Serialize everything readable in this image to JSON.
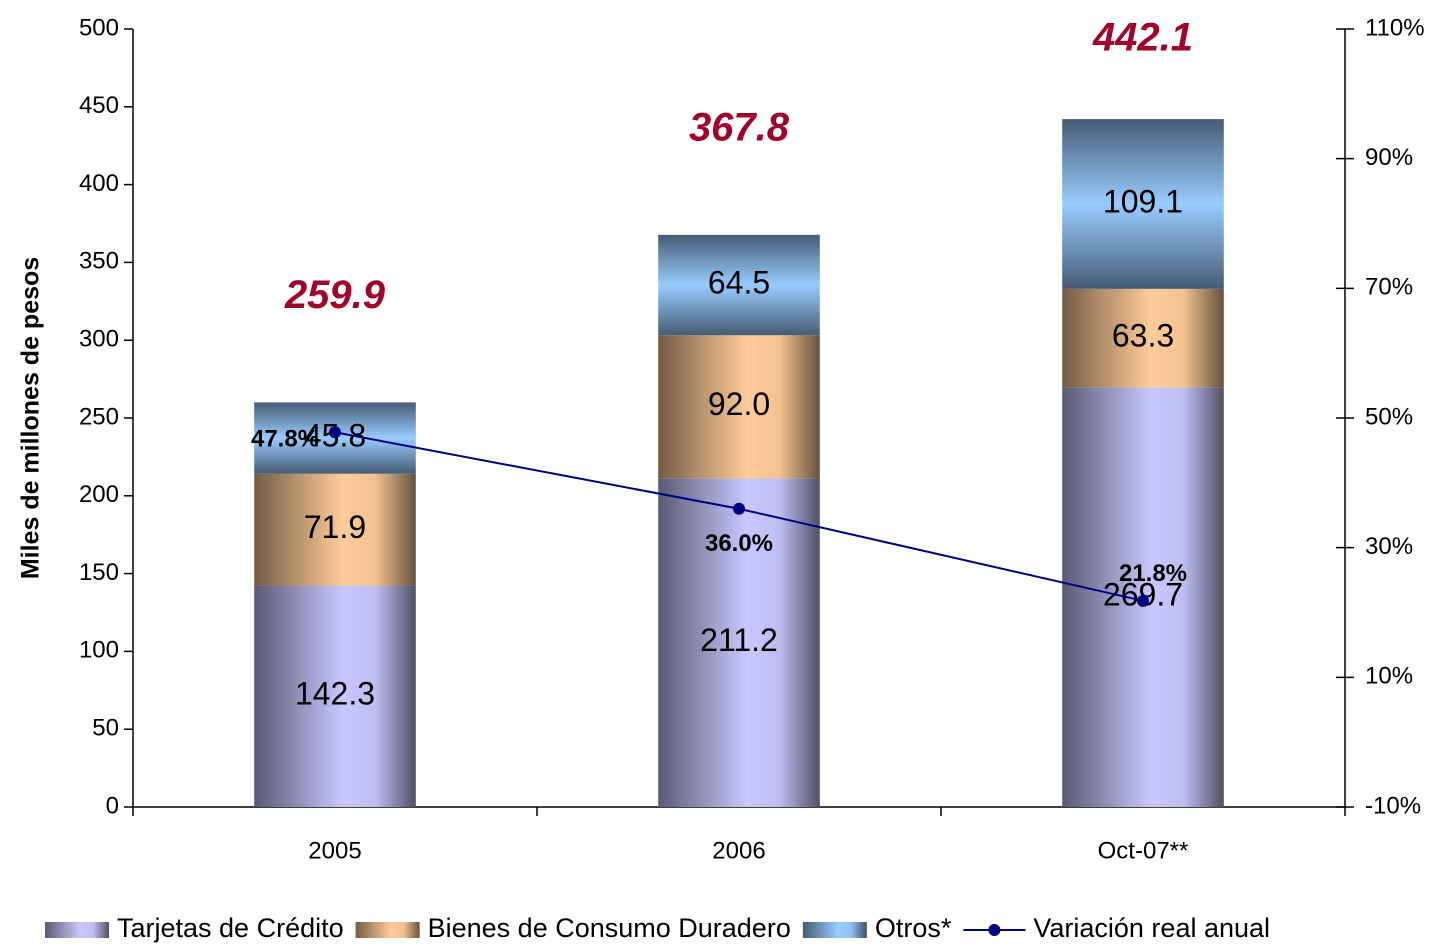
{
  "chart_data": {
    "type": "bar",
    "stacked": true,
    "y_label": "Miles de millones de pesos",
    "categories": [
      "2005",
      "2006",
      "Oct-07**"
    ],
    "series": [
      {
        "name": "Tarjetas de Crédito",
        "color": "#c8c8ff",
        "shade": "horizontal",
        "values": [
          142.3,
          211.2,
          269.7
        ]
      },
      {
        "name": "Bienes de Consumo Duradero",
        "color": "#ffcc99",
        "shade": "horizontal",
        "values": [
          71.9,
          92.0,
          63.3
        ],
        "value_labels": [
          "71.9",
          "92.0",
          "63.3"
        ]
      },
      {
        "name": "Otros*",
        "color": "#99ccff",
        "shade": "vertical",
        "values": [
          45.8,
          64.5,
          109.1
        ]
      },
      {
        "name": "Variación real anual",
        "type": "line",
        "axis": "y2",
        "color": "#000080",
        "values": [
          47.8,
          36.0,
          21.8
        ],
        "value_labels": [
          "47.8%",
          "36.0%",
          "21.8%"
        ]
      }
    ],
    "totals": [
      259.9,
      367.8,
      442.1
    ],
    "totals_color": "#a0002a",
    "ylim": [
      0,
      500
    ],
    "yticks": [
      0,
      50,
      100,
      150,
      200,
      250,
      300,
      350,
      400,
      450,
      500
    ],
    "y2lim": [
      -10,
      110
    ],
    "y2ticks": [
      {
        "value": -10,
        "label": "-10%"
      },
      {
        "value": 10,
        "label": "10%"
      },
      {
        "value": 30,
        "label": "30%"
      },
      {
        "value": 50,
        "label": "50%"
      },
      {
        "value": 70,
        "label": "70%"
      },
      {
        "value": 90,
        "label": "90%"
      },
      {
        "value": 110,
        "label": "110%"
      }
    ],
    "legend": "bottom"
  }
}
